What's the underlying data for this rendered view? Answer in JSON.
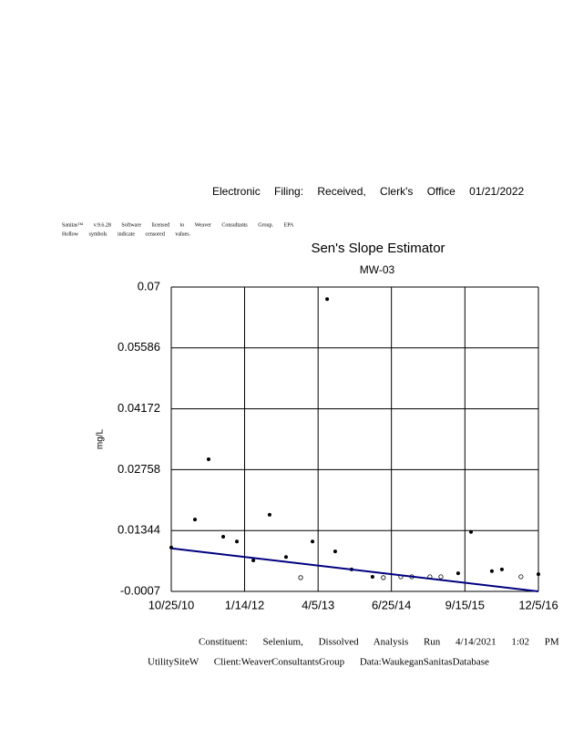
{
  "header": {
    "text": "Electronic Filing: Received, Clerk's Office 01/21/2022"
  },
  "notes": [
    "Sanitas™ v.9.6.28 Software licensed to Weaver Consultants Group. EPA",
    "Hollow symbols indicate censored values."
  ],
  "chart_data": {
    "type": "scatter",
    "title": "Sen's Slope Estimator",
    "subtitle": "MW-03",
    "y_label": "mg/L",
    "x": [
      "2010-10-25",
      "2011-03-18",
      "2011-06-09",
      "2011-09-06",
      "2011-11-28",
      "2012-03-07",
      "2012-06-14",
      "2012-09-22",
      "2012-12-20",
      "2013-03-02",
      "2013-05-30",
      "2013-07-18",
      "2013-10-26",
      "2014-03-02",
      "2014-05-07",
      "2014-08-21",
      "2014-10-27",
      "2015-02-14",
      "2015-04-22",
      "2015-08-05",
      "2015-10-22",
      "2016-02-26",
      "2016-04-27",
      "2016-08-21",
      "2016-12-05"
    ],
    "values": [
      0.0095,
      0.016,
      0.03,
      0.012,
      0.0109,
      0.0065,
      0.0171,
      0.0073,
      0.0025,
      0.0109,
      0.0672,
      0.0086,
      0.0044,
      0.0027,
      0.0025,
      0.0027,
      0.0027,
      0.0027,
      0.0027,
      0.0035,
      0.0131,
      0.004,
      0.0044,
      0.0027,
      0.0033
    ],
    "censored": [
      false,
      false,
      false,
      false,
      false,
      false,
      false,
      false,
      true,
      false,
      false,
      false,
      false,
      false,
      true,
      true,
      true,
      true,
      true,
      false,
      false,
      false,
      false,
      true,
      false
    ],
    "color": "#000000",
    "trend": {
      "x": [
        "2010-10-25",
        "2016-12-05"
      ],
      "values": [
        0.0093,
        -0.0007
      ],
      "color": "#000080"
    },
    "xlim": [
      "2010-10-25",
      "2016-12-05"
    ],
    "xticks": [
      {
        "value": "2010-10-25",
        "label": "10/25/10"
      },
      {
        "value": "2012-01-14",
        "label": "1/14/12"
      },
      {
        "value": "2013-04-05",
        "label": "4/5/13"
      },
      {
        "value": "2014-06-25",
        "label": "6/25/14"
      },
      {
        "value": "2015-09-15",
        "label": "9/15/15"
      },
      {
        "value": "2016-12-05",
        "label": "12/5/16"
      }
    ],
    "ylim": [
      -0.0007,
      0.07
    ],
    "yticks": [
      0.07,
      0.05586,
      0.04172,
      0.02758,
      0.01344,
      -0.0007
    ],
    "grid": true
  },
  "footer": [
    "Constituent: Selenium, Dissolved Analysis Run 4/14/2021 1:02 PM",
    "UtilitySiteW Client:WeaverConsultantsGroup Data:WaukeganSanitasDatabase"
  ]
}
